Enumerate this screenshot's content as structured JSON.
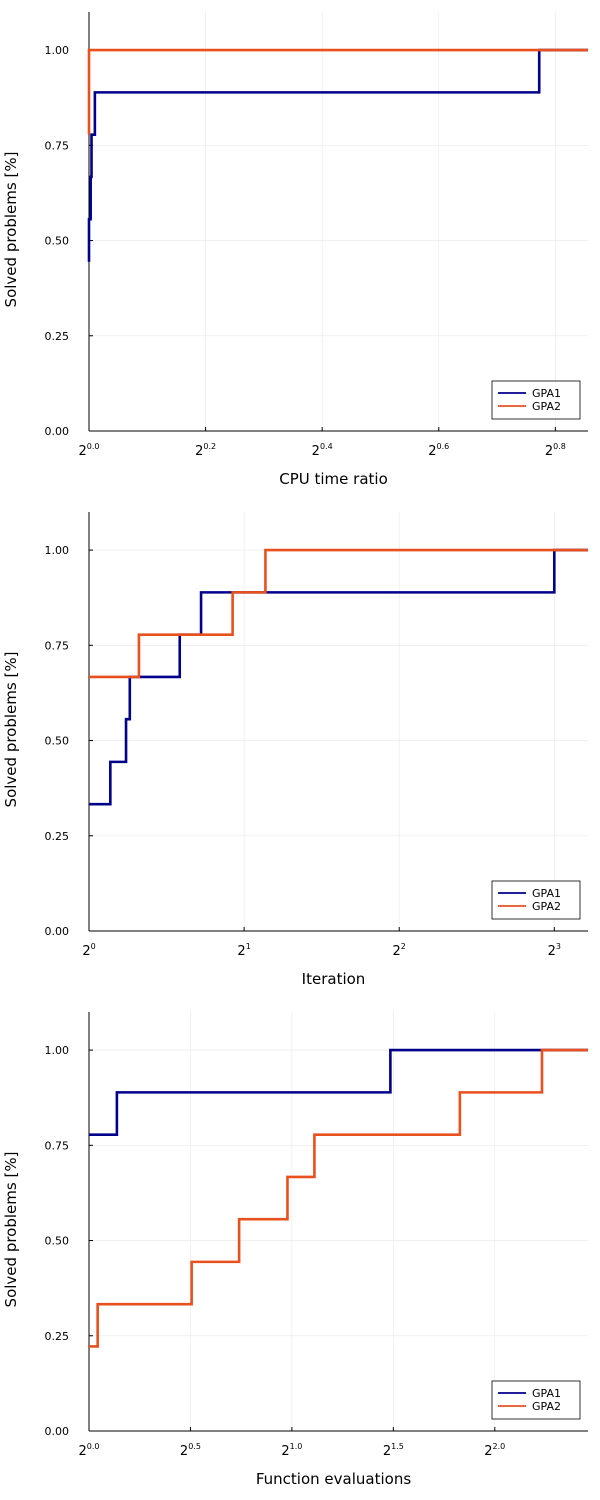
{
  "colors": {
    "GPA1": "#00008b",
    "GPA2": "#e8501e",
    "grid": "#e8e8e8",
    "axis": "#000000"
  },
  "chart_data": [
    {
      "type": "line",
      "xscale": "log2",
      "xlabel": "CPU time ratio",
      "ylabel": "Solved problems [%]",
      "xlim": [
        1.0,
        1.81
      ],
      "ylim": [
        0,
        1.1
      ],
      "xticks": [
        {
          "value": 1.0,
          "base": "2",
          "exp": "0.0"
        },
        {
          "value": 1.1487,
          "base": "2",
          "exp": "0.2"
        },
        {
          "value": 1.3195,
          "base": "2",
          "exp": "0.4"
        },
        {
          "value": 1.5157,
          "base": "2",
          "exp": "0.6"
        },
        {
          "value": 1.7411,
          "base": "2",
          "exp": "0.8"
        }
      ],
      "yticks": [
        "0.00",
        "0.25",
        "0.50",
        "0.75",
        "1.00"
      ],
      "yticks_values": [
        0,
        0.25,
        0.5,
        0.75,
        1.0
      ],
      "legend": {
        "position": "bottom-right",
        "entries": [
          "GPA1",
          "GPA2"
        ]
      },
      "series": [
        {
          "name": "GPA1",
          "color": "#00008b",
          "x": [
            1.0,
            1.0,
            1.002,
            1.003,
            1.005,
            1.007,
            1.708,
            1.81
          ],
          "y": [
            0.444,
            0.556,
            0.667,
            0.778,
            0.778,
            0.889,
            1.0,
            1.0
          ]
        },
        {
          "name": "GPA2",
          "color": "#e8501e",
          "x": [
            1.0,
            1.0,
            1.81
          ],
          "y": [
            0.778,
            1.0,
            1.0
          ]
        }
      ]
    },
    {
      "type": "line",
      "xscale": "log2",
      "xlabel": "Iteration",
      "ylabel": "Solved problems [%]",
      "xlim": [
        1.0,
        9.3
      ],
      "ylim": [
        0,
        1.1
      ],
      "xticks": [
        {
          "value": 1,
          "base": "2",
          "exp": "0"
        },
        {
          "value": 2,
          "base": "2",
          "exp": "1"
        },
        {
          "value": 4,
          "base": "2",
          "exp": "2"
        },
        {
          "value": 8,
          "base": "2",
          "exp": "3"
        }
      ],
      "yticks": [
        "0.00",
        "0.25",
        "0.50",
        "0.75",
        "1.00"
      ],
      "yticks_values": [
        0,
        0.25,
        0.5,
        0.75,
        1.0
      ],
      "legend": {
        "position": "bottom-right",
        "entries": [
          "GPA1",
          "GPA2"
        ]
      },
      "series": [
        {
          "name": "GPA1",
          "color": "#00008b",
          "x": [
            1.0,
            1.1,
            1.18,
            1.2,
            1.5,
            1.65,
            8.0,
            9.3
          ],
          "y": [
            0.333,
            0.444,
            0.556,
            0.667,
            0.778,
            0.889,
            1.0,
            1.0
          ]
        },
        {
          "name": "GPA2",
          "color": "#e8501e",
          "x": [
            1.0,
            1.25,
            1.9,
            2.2,
            9.3
          ],
          "y": [
            0.667,
            0.778,
            0.889,
            1.0,
            1.0
          ]
        }
      ]
    },
    {
      "type": "line",
      "xscale": "log2",
      "xlabel": "Function evaluations",
      "ylabel": "Solved problems [%]",
      "xlim": [
        1.0,
        5.5
      ],
      "ylim": [
        0,
        1.1
      ],
      "xticks": [
        {
          "value": 1.0,
          "base": "2",
          "exp": "0.0"
        },
        {
          "value": 1.4142,
          "base": "2",
          "exp": "0.5"
        },
        {
          "value": 2.0,
          "base": "2",
          "exp": "1.0"
        },
        {
          "value": 2.8284,
          "base": "2",
          "exp": "1.5"
        },
        {
          "value": 4.0,
          "base": "2",
          "exp": "2.0"
        }
      ],
      "yticks": [
        "0.00",
        "0.25",
        "0.50",
        "0.75",
        "1.00"
      ],
      "yticks_values": [
        0,
        0.25,
        0.5,
        0.75,
        1.0
      ],
      "legend": {
        "position": "bottom-right",
        "entries": [
          "GPA1",
          "GPA2"
        ]
      },
      "series": [
        {
          "name": "GPA1",
          "color": "#00008b",
          "x": [
            1.0,
            1.1,
            2.8,
            5.5
          ],
          "y": [
            0.778,
            0.889,
            1.0,
            1.0
          ]
        },
        {
          "name": "GPA2",
          "color": "#e8501e",
          "x": [
            1.0,
            1.03,
            1.42,
            1.67,
            1.97,
            2.16,
            3.55,
            4.7,
            5.5
          ],
          "y": [
            0.222,
            0.333,
            0.444,
            0.556,
            0.667,
            0.778,
            0.889,
            1.0,
            1.0
          ]
        }
      ]
    }
  ]
}
